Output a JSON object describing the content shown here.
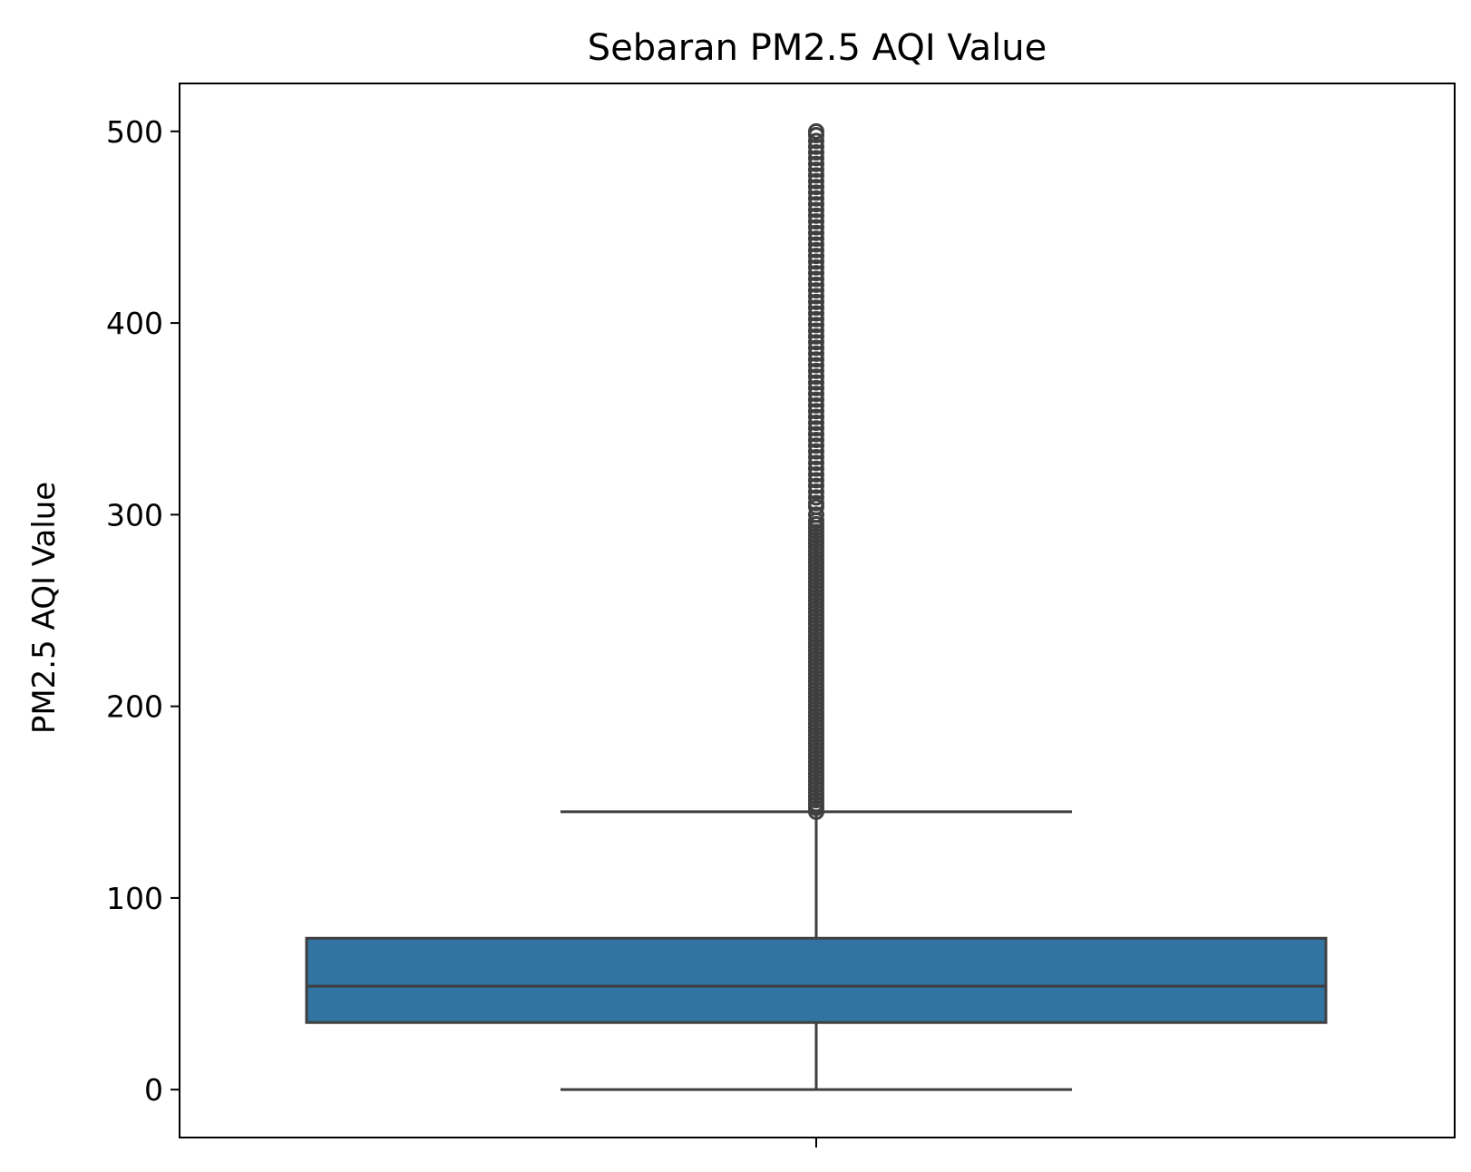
{
  "chart_data": {
    "type": "box",
    "title": "Sebaran PM2.5 AQI Value",
    "xlabel": "",
    "ylabel": "PM2.5 AQI Value",
    "ylim": [
      -25,
      525
    ],
    "yticks": [
      0,
      100,
      200,
      300,
      400,
      500
    ],
    "grid": false,
    "box_color": "#3274a1",
    "line_color": "#3f3f3f",
    "box": {
      "min": 0,
      "q1": 35,
      "median": 54,
      "q3": 79,
      "max": 145
    },
    "outliers": [
      145,
      147,
      149,
      151,
      153,
      155,
      157,
      159,
      161,
      163,
      165,
      167,
      169,
      171,
      173,
      175,
      177,
      179,
      181,
      183,
      185,
      187,
      189,
      191,
      193,
      195,
      197,
      199,
      201,
      203,
      205,
      207,
      209,
      211,
      213,
      215,
      217,
      219,
      221,
      223,
      225,
      227,
      229,
      231,
      233,
      235,
      237,
      239,
      241,
      243,
      245,
      247,
      249,
      251,
      253,
      255,
      257,
      259,
      261,
      263,
      265,
      267,
      269,
      271,
      273,
      275,
      277,
      279,
      281,
      283,
      285,
      287,
      289,
      291,
      293,
      295,
      297,
      300,
      304,
      306,
      309,
      312,
      315,
      318,
      321,
      324,
      327,
      330,
      333,
      336,
      339,
      342,
      345,
      348,
      351,
      354,
      357,
      360,
      363,
      366,
      369,
      372,
      375,
      378,
      381,
      384,
      387,
      390,
      393,
      396,
      399,
      402,
      405,
      408,
      411,
      414,
      417,
      420,
      423,
      426,
      429,
      432,
      435,
      438,
      441,
      444,
      447,
      450,
      453,
      456,
      459,
      462,
      465,
      468,
      471,
      474,
      477,
      480,
      483,
      486,
      489,
      492,
      495,
      498,
      500
    ]
  }
}
